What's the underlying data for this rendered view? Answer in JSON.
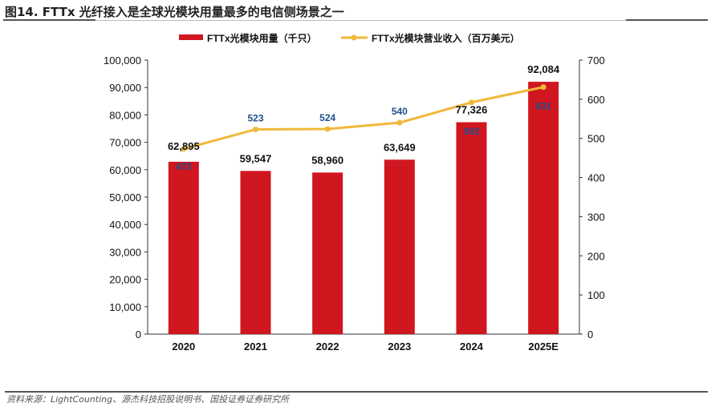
{
  "title": "图14. FTTx 光纤接入是全球光模块用量最多的电信侧场景之一",
  "source": "资料来源：LightCounting、源杰科技招股说明书、国投证券证券研究所",
  "chart_data": {
    "type": "bar+line",
    "categories": [
      "2020",
      "2021",
      "2022",
      "2023",
      "2024",
      "2025E"
    ],
    "series": [
      {
        "name": "FTTx光模块用量（千只）",
        "type": "bar",
        "axis": "left",
        "color": "#d0161f",
        "values": [
          62895,
          59547,
          58960,
          63649,
          77326,
          92084
        ],
        "labels": [
          "62,895",
          "59,547",
          "58,960",
          "63,649",
          "77,326",
          "92,084"
        ]
      },
      {
        "name": "FTTx光模块营业收入（百万美元）",
        "type": "line",
        "axis": "right",
        "color": "#f0b83a",
        "label_color": "#1f4e8c",
        "values": [
          473,
          523,
          524,
          540,
          592,
          631
        ],
        "labels": [
          "473",
          "523",
          "524",
          "540",
          "592",
          "631"
        ]
      }
    ],
    "left_axis": {
      "range": [
        0,
        100000
      ],
      "ticks": [
        "0",
        "10,000",
        "20,000",
        "30,000",
        "40,000",
        "50,000",
        "60,000",
        "70,000",
        "80,000",
        "90,000",
        "100,000"
      ]
    },
    "right_axis": {
      "range": [
        0,
        700
      ],
      "ticks": [
        "0",
        "100",
        "200",
        "300",
        "400",
        "500",
        "600",
        "700"
      ]
    },
    "legend": "top",
    "grid": false
  }
}
